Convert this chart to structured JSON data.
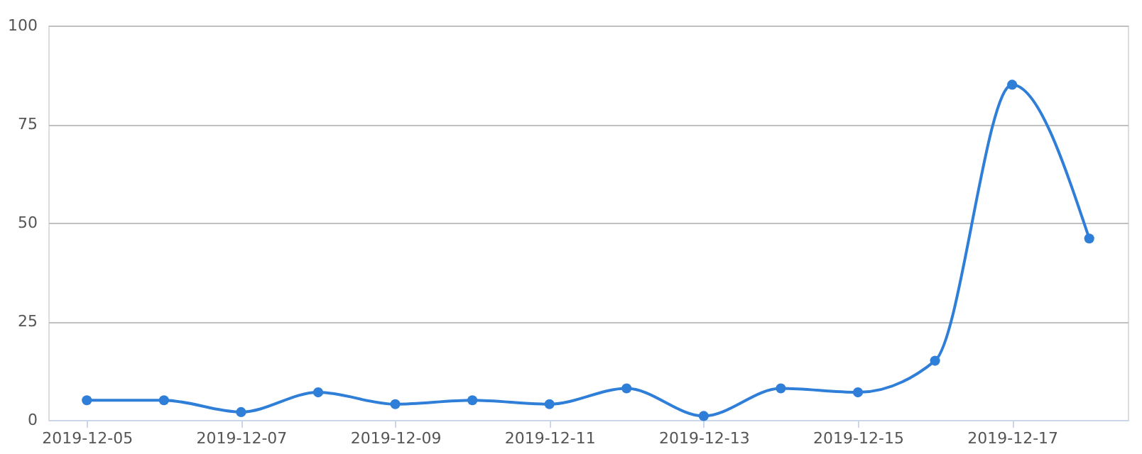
{
  "chart_data": {
    "type": "line",
    "x": [
      "2019-12-05",
      "2019-12-06",
      "2019-12-07",
      "2019-12-08",
      "2019-12-09",
      "2019-12-10",
      "2019-12-11",
      "2019-12-12",
      "2019-12-13",
      "2019-12-14",
      "2019-12-15",
      "2019-12-16",
      "2019-12-17",
      "2019-12-18"
    ],
    "series": [
      {
        "color": "#2f7ed8",
        "values": [
          5,
          5,
          2,
          7,
          4,
          5,
          4,
          8,
          1,
          8,
          7,
          15,
          85,
          46
        ]
      }
    ],
    "xlim": [
      "2019-12-04T12:00",
      "2019-12-18T12:00"
    ],
    "xticks": [
      "2019-12-05",
      "2019-12-07",
      "2019-12-09",
      "2019-12-11",
      "2019-12-13",
      "2019-12-15",
      "2019-12-17"
    ],
    "ylim": [
      0,
      100
    ],
    "yticks": [
      0,
      25,
      50,
      75,
      100
    ],
    "grid": "y",
    "marker": "circle",
    "line_style": "solid"
  }
}
